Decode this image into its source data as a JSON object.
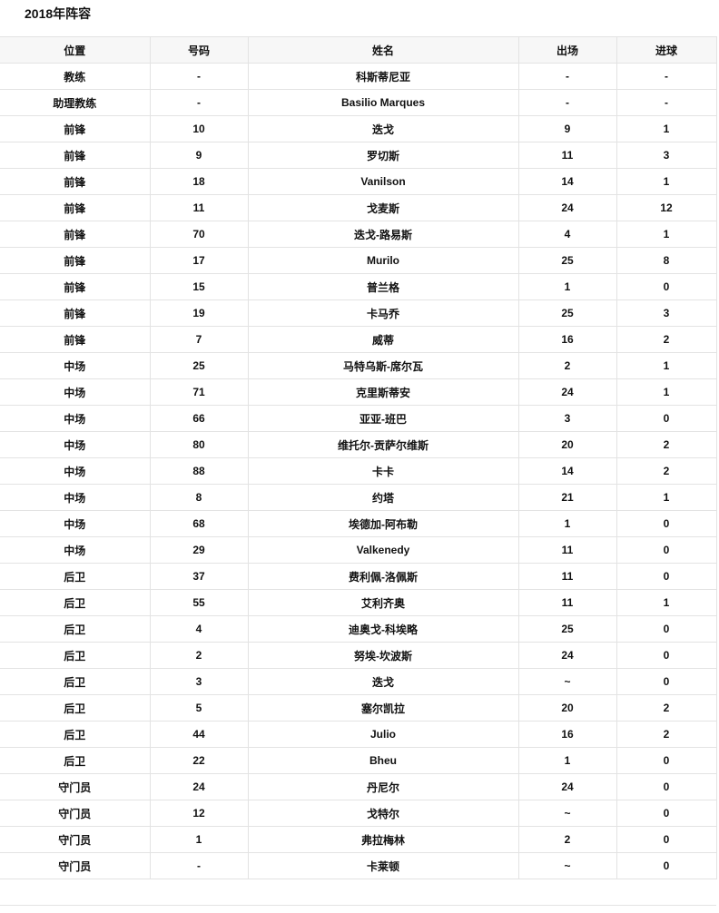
{
  "title": "2018年阵容",
  "columns": [
    "位置",
    "号码",
    "姓名",
    "出场",
    "进球"
  ],
  "rows": [
    [
      "教练",
      "-",
      "科斯蒂尼亚",
      "-",
      "-"
    ],
    [
      "助理教练",
      "-",
      "Basilio Marques",
      "-",
      "-"
    ],
    [
      "前锋",
      "10",
      "迭戈",
      "9",
      "1"
    ],
    [
      "前锋",
      "9",
      "罗切斯",
      "11",
      "3"
    ],
    [
      "前锋",
      "18",
      "Vanilson",
      "14",
      "1"
    ],
    [
      "前锋",
      "11",
      "戈麦斯",
      "24",
      "12"
    ],
    [
      "前锋",
      "70",
      "迭戈-路易斯",
      "4",
      "1"
    ],
    [
      "前锋",
      "17",
      "Murilo",
      "25",
      "8"
    ],
    [
      "前锋",
      "15",
      "普兰格",
      "1",
      "0"
    ],
    [
      "前锋",
      "19",
      "卡马乔",
      "25",
      "3"
    ],
    [
      "前锋",
      "7",
      "威蒂",
      "16",
      "2"
    ],
    [
      "中场",
      "25",
      "马特乌斯-席尔瓦",
      "2",
      "1"
    ],
    [
      "中场",
      "71",
      "克里斯蒂安",
      "24",
      "1"
    ],
    [
      "中场",
      "66",
      "亚亚-班巴",
      "3",
      "0"
    ],
    [
      "中场",
      "80",
      "维托尔-贡萨尔维斯",
      "20",
      "2"
    ],
    [
      "中场",
      "88",
      "卡卡",
      "14",
      "2"
    ],
    [
      "中场",
      "8",
      "约塔",
      "21",
      "1"
    ],
    [
      "中场",
      "68",
      "埃德加-阿布勒",
      "1",
      "0"
    ],
    [
      "中场",
      "29",
      "Valkenedy",
      "11",
      "0"
    ],
    [
      "后卫",
      "37",
      "费利佩-洛佩斯",
      "11",
      "0"
    ],
    [
      "后卫",
      "55",
      "艾利齐奥",
      "11",
      "1"
    ],
    [
      "后卫",
      "4",
      "迪奥戈-科埃略",
      "25",
      "0"
    ],
    [
      "后卫",
      "2",
      "努埃-坎波斯",
      "24",
      "0"
    ],
    [
      "后卫",
      "3",
      "迭戈",
      "~",
      "0"
    ],
    [
      "后卫",
      "5",
      "塞尔凯拉",
      "20",
      "2"
    ],
    [
      "后卫",
      "44",
      "Julio",
      "16",
      "2"
    ],
    [
      "后卫",
      "22",
      "Bheu",
      "1",
      "0"
    ],
    [
      "守门员",
      "24",
      "丹尼尔",
      "24",
      "0"
    ],
    [
      "守门员",
      "12",
      "戈特尔",
      "~",
      "0"
    ],
    [
      "守门员",
      "1",
      "弗拉梅林",
      "2",
      "0"
    ],
    [
      "守门员",
      "-",
      "卡莱顿",
      "~",
      "0"
    ]
  ]
}
